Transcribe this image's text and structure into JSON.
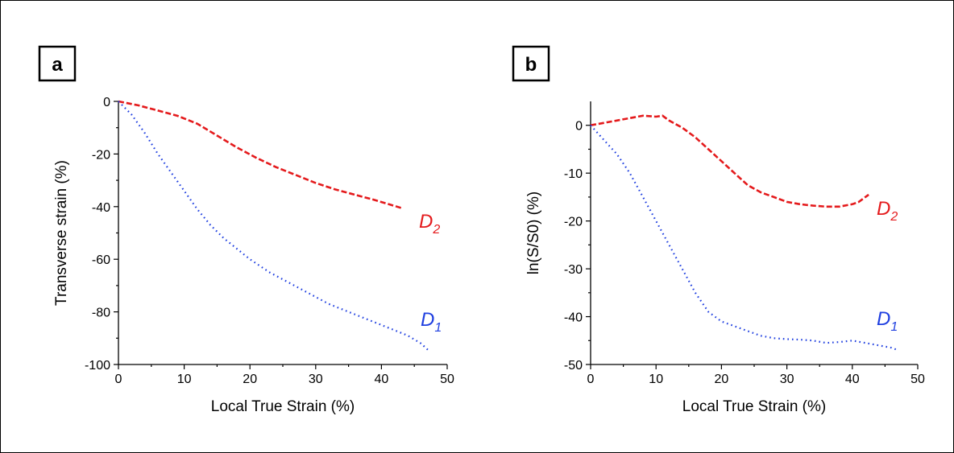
{
  "chart_data": [
    {
      "panel_label": "a",
      "type": "line",
      "xlabel": "Local True Strain (%)",
      "ylabel": "Transverse strain (%)",
      "xlim": [
        0,
        50
      ],
      "ylim": [
        -100,
        0
      ],
      "xticks": [
        0,
        10,
        20,
        30,
        40,
        50
      ],
      "yticks": [
        0,
        -20,
        -40,
        -60,
        -80,
        -100
      ],
      "grid": false,
      "series": [
        {
          "name": "D2",
          "label_main": "D",
          "label_sub": "2",
          "color": "#e41a1c",
          "line_style": "dashed",
          "points": [
            [
              0,
              0
            ],
            [
              3,
              -1.5
            ],
            [
              6,
              -3.5
            ],
            [
              9,
              -5.5
            ],
            [
              12,
              -8.5
            ],
            [
              15,
              -13
            ],
            [
              18,
              -17.5
            ],
            [
              21,
              -21.5
            ],
            [
              24,
              -25
            ],
            [
              27,
              -28
            ],
            [
              30,
              -31
            ],
            [
              33,
              -33.5
            ],
            [
              36,
              -35.5
            ],
            [
              39,
              -37.5
            ],
            [
              41,
              -39
            ],
            [
              43,
              -40.5
            ]
          ]
        },
        {
          "name": "D1",
          "label_main": "D",
          "label_sub": "1",
          "color": "#1f3fe0",
          "line_style": "dotted",
          "points": [
            [
              0,
              0
            ],
            [
              2,
              -5
            ],
            [
              4,
              -12
            ],
            [
              6,
              -20
            ],
            [
              8,
              -27
            ],
            [
              10,
              -34
            ],
            [
              12,
              -41
            ],
            [
              14,
              -47
            ],
            [
              16,
              -52
            ],
            [
              18,
              -56
            ],
            [
              20,
              -60
            ],
            [
              23,
              -65
            ],
            [
              26,
              -69
            ],
            [
              29,
              -73
            ],
            [
              32,
              -77
            ],
            [
              35,
              -80
            ],
            [
              38,
              -83
            ],
            [
              41,
              -86
            ],
            [
              44,
              -89
            ],
            [
              46,
              -92
            ],
            [
              47.3,
              -95
            ]
          ]
        }
      ]
    },
    {
      "panel_label": "b",
      "type": "line",
      "xlabel": "Local True Strain (%)",
      "ylabel": "ln(S/S0) (%)",
      "xlim": [
        0,
        50
      ],
      "ylim": [
        -50,
        5
      ],
      "xticks": [
        0,
        10,
        20,
        30,
        40,
        50
      ],
      "yticks": [
        0,
        -10,
        -20,
        -30,
        -40,
        -50
      ],
      "grid": false,
      "series": [
        {
          "name": "D2",
          "label_main": "D",
          "label_sub": "2",
          "color": "#e41a1c",
          "line_style": "dashed",
          "points": [
            [
              0,
              0
            ],
            [
              2,
              0.5
            ],
            [
              4,
              1
            ],
            [
              6,
              1.5
            ],
            [
              8,
              2
            ],
            [
              10,
              1.8
            ],
            [
              11,
              2
            ],
            [
              12,
              1
            ],
            [
              14,
              -0.5
            ],
            [
              16,
              -2.5
            ],
            [
              18,
              -5
            ],
            [
              20,
              -7.5
            ],
            [
              22,
              -10
            ],
            [
              24,
              -12.5
            ],
            [
              26,
              -14
            ],
            [
              28,
              -15
            ],
            [
              30,
              -16
            ],
            [
              32,
              -16.5
            ],
            [
              34,
              -16.8
            ],
            [
              36,
              -17
            ],
            [
              38,
              -17
            ],
            [
              40,
              -16.5
            ],
            [
              41,
              -16
            ],
            [
              42,
              -15
            ],
            [
              42.5,
              -14.5
            ]
          ]
        },
        {
          "name": "D1",
          "label_main": "D",
          "label_sub": "1",
          "color": "#1f3fe0",
          "line_style": "dotted",
          "points": [
            [
              0,
              0
            ],
            [
              2,
              -3
            ],
            [
              4,
              -6
            ],
            [
              6,
              -10
            ],
            [
              8,
              -15
            ],
            [
              10,
              -20
            ],
            [
              12,
              -25
            ],
            [
              14,
              -30
            ],
            [
              16,
              -35
            ],
            [
              18,
              -39
            ],
            [
              20,
              -41
            ],
            [
              22,
              -42
            ],
            [
              24,
              -43
            ],
            [
              26,
              -44
            ],
            [
              28,
              -44.5
            ],
            [
              30,
              -44.7
            ],
            [
              32,
              -44.8
            ],
            [
              34,
              -45
            ],
            [
              36,
              -45.5
            ],
            [
              38,
              -45.3
            ],
            [
              40,
              -45
            ],
            [
              42,
              -45.5
            ],
            [
              44,
              -46
            ],
            [
              46,
              -46.5
            ],
            [
              47,
              -47
            ]
          ]
        }
      ]
    }
  ]
}
